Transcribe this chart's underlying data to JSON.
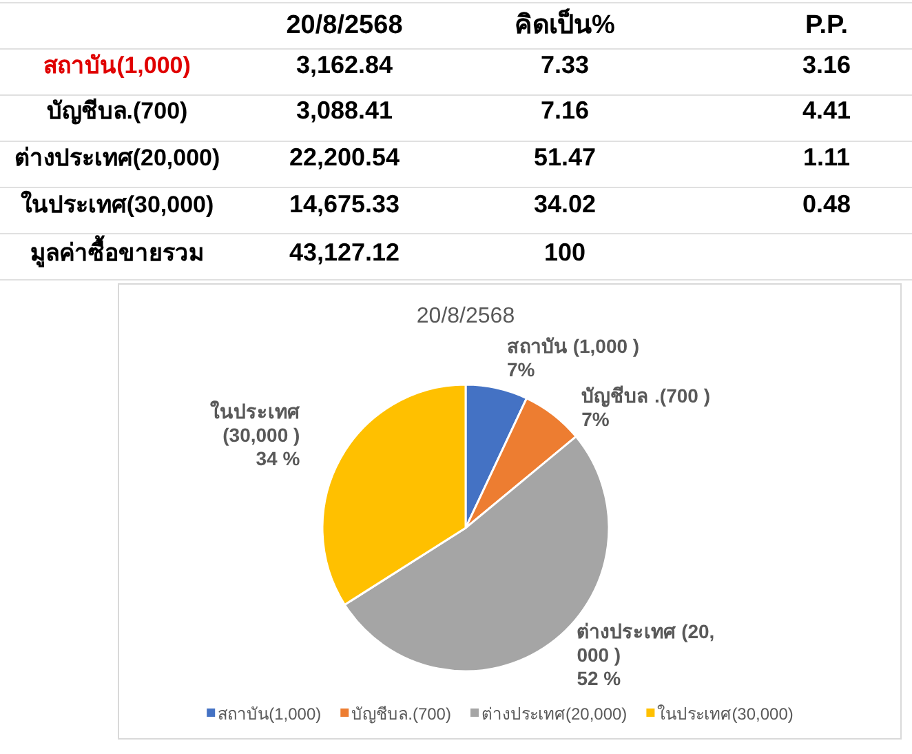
{
  "chart_data": [
    {
      "type": "other",
      "categories": [
        null,
        "20/8/2568",
        "คิดเป็น%",
        "P.P."
      ],
      "y_categories": [
        "สถาบัน(1,000)",
        "บัญชีบล.(700)",
        "ต่างประเทศ(20,000)",
        "ในประเทศ(30,000)",
        "มูลค่าซื้อขายรวม"
      ],
      "cell_labels": [
        [
          "3,162.84",
          "7.33",
          "3.16"
        ],
        [
          "3,088.41",
          "7.16",
          "4.41"
        ],
        [
          "22,200.54",
          "51.47",
          "1.11"
        ],
        [
          "14,675.33",
          "34.02",
          "0.48"
        ],
        [
          "43,127.12",
          "100",
          null
        ]
      ]
    },
    {
      "type": "pie",
      "title": "20/8/2568",
      "categories": [
        "สถาบัน(1,000)",
        "บัญชีบล.(700)",
        "ต่างประเทศ(20,000)",
        "ในประเทศ(30,000)"
      ],
      "values": [
        7,
        7,
        52,
        34
      ],
      "colors": [
        "#4472c4",
        "#ed7d31",
        "#a5a5a5",
        "#ffc000"
      ],
      "value_labels": [
        "สถาบัน (1,000 )\n7%",
        "บัญชีบล .(700 )\n7%",
        "ต่างประเทศ (20,\n000 )\n52 %",
        "ในประเทศ\n(30,000 )\n34 %"
      ],
      "legend": "bottom"
    }
  ]
}
